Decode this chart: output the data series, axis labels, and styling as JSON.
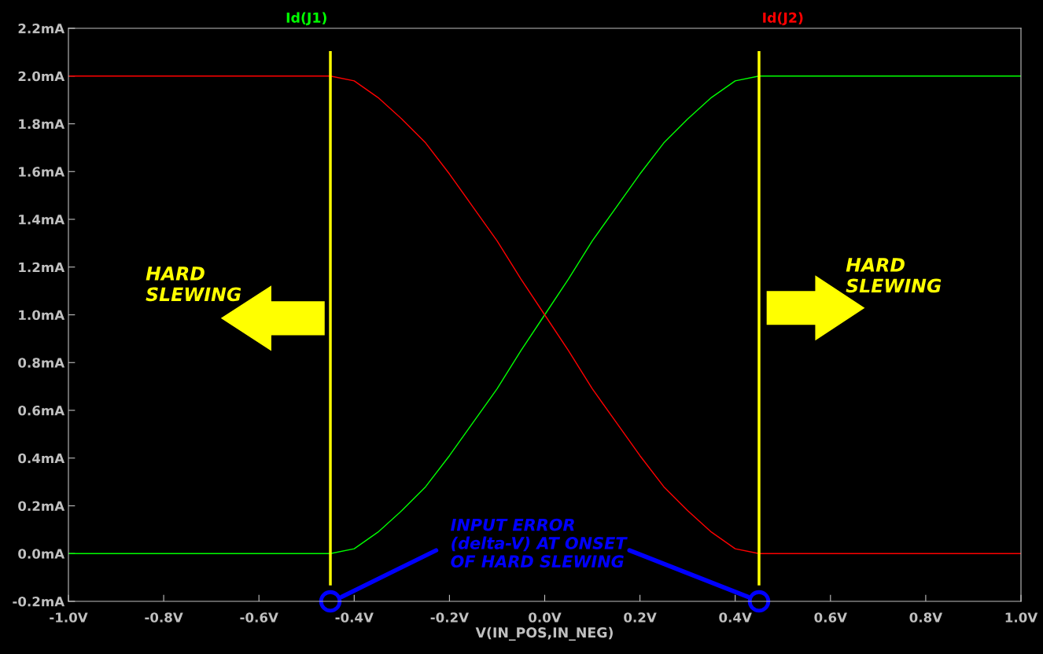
{
  "chart_data": {
    "type": "line",
    "xlabel": "V(IN_POS,IN_NEG)",
    "xlim": [
      -1.0,
      1.0
    ],
    "xticks": [
      {
        "value": -1.0,
        "label": "-1.0V"
      },
      {
        "value": -0.8,
        "label": "-0.8V"
      },
      {
        "value": -0.6,
        "label": "-0.6V"
      },
      {
        "value": -0.4,
        "label": "-0.4V"
      },
      {
        "value": -0.2,
        "label": "-0.2V"
      },
      {
        "value": 0.0,
        "label": "0.0V"
      },
      {
        "value": 0.2,
        "label": "0.2V"
      },
      {
        "value": 0.4,
        "label": "0.4V"
      },
      {
        "value": 0.6,
        "label": "0.6V"
      },
      {
        "value": 0.8,
        "label": "0.8V"
      },
      {
        "value": 1.0,
        "label": "1.0V"
      }
    ],
    "ylim": [
      -0.2,
      2.2
    ],
    "yticks": [
      {
        "value": -0.2,
        "label": "-0.2mA"
      },
      {
        "value": 0.0,
        "label": "0.0mA"
      },
      {
        "value": 0.2,
        "label": "0.2mA"
      },
      {
        "value": 0.4,
        "label": "0.4mA"
      },
      {
        "value": 0.6,
        "label": "0.6mA"
      },
      {
        "value": 0.8,
        "label": "0.8mA"
      },
      {
        "value": 1.0,
        "label": "1.0mA"
      },
      {
        "value": 1.2,
        "label": "1.2mA"
      },
      {
        "value": 1.4,
        "label": "1.4mA"
      },
      {
        "value": 1.6,
        "label": "1.6mA"
      },
      {
        "value": 1.8,
        "label": "1.8mA"
      },
      {
        "value": 2.0,
        "label": "2.0mA"
      },
      {
        "value": 2.2,
        "label": "2.2mA"
      }
    ],
    "grid": false,
    "legend": "top",
    "marker": "none",
    "line_style": "solid",
    "x": [
      -1.0,
      -0.45,
      -0.4,
      -0.35,
      -0.3,
      -0.25,
      -0.2,
      -0.15,
      -0.1,
      -0.05,
      0.0,
      0.05,
      0.1,
      0.15,
      0.2,
      0.25,
      0.3,
      0.35,
      0.4,
      0.45,
      1.0
    ],
    "series": [
      {
        "name": "Id(J1)",
        "color": "#00ff00",
        "values": [
          0.0,
          0.0,
          0.02,
          0.09,
          0.18,
          0.28,
          0.41,
          0.55,
          0.69,
          0.85,
          1.0,
          1.15,
          1.31,
          1.45,
          1.59,
          1.72,
          1.82,
          1.91,
          1.98,
          2.0,
          2.0
        ]
      },
      {
        "name": "Id(J2)",
        "color": "#ff0000",
        "values": [
          2.0,
          2.0,
          1.98,
          1.91,
          1.82,
          1.72,
          1.59,
          1.45,
          1.31,
          1.15,
          1.0,
          0.85,
          0.69,
          0.55,
          0.41,
          0.28,
          0.18,
          0.09,
          0.02,
          0.0,
          0.0
        ]
      }
    ],
    "ref_lines": [
      {
        "axis": "x",
        "value": -0.45,
        "color": "#ffff00"
      },
      {
        "axis": "x",
        "value": 0.45,
        "color": "#ffff00"
      }
    ],
    "annotations": [
      "HARD\nSLEWING",
      "HARD\nSLEWING",
      "INPUT ERROR\n(delta-V) AT ONSET\nOF HARD SLEWING"
    ]
  }
}
